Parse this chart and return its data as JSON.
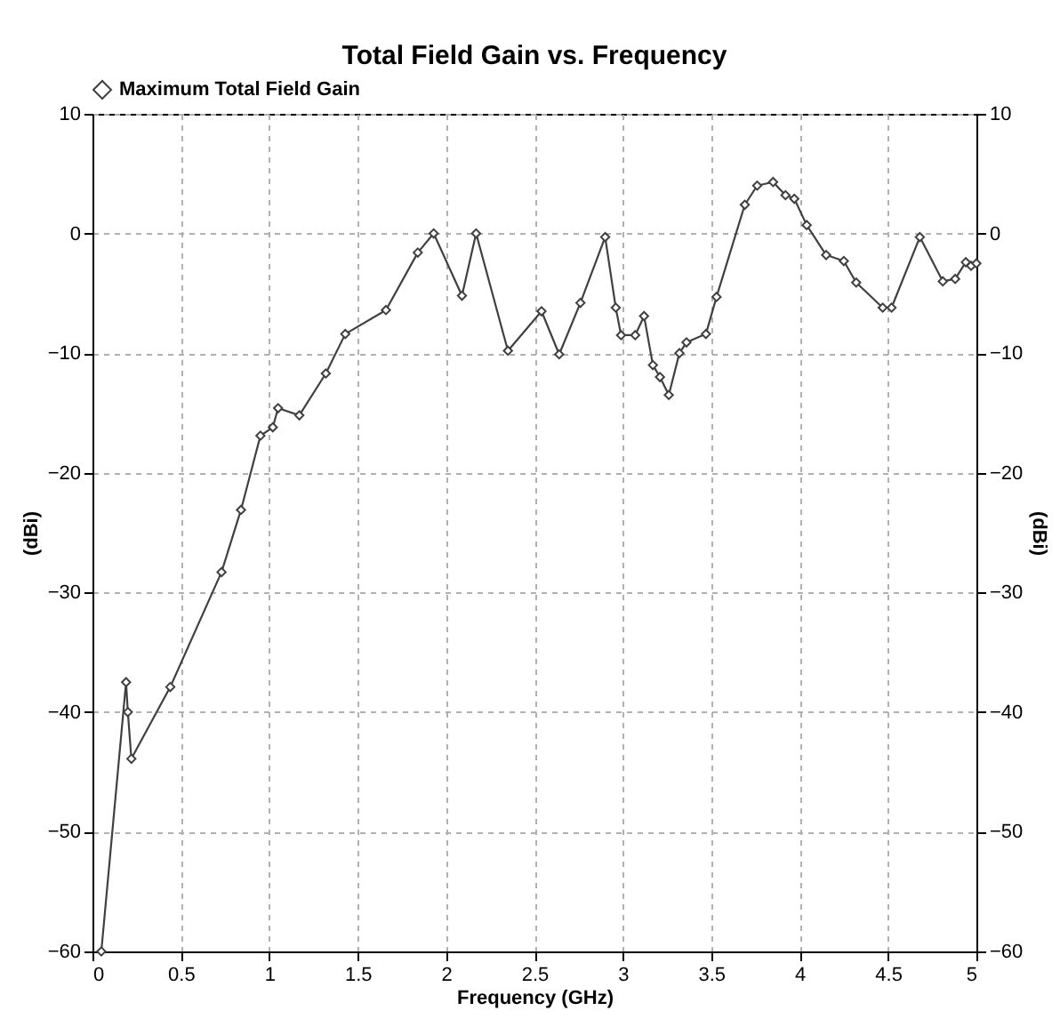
{
  "chart_data": {
    "type": "line",
    "title": "Total Field Gain vs. Frequency",
    "xlabel": "Frequency (GHz)",
    "ylabel": "(dBi)",
    "y2label": "(dBi)",
    "x": [
      0.05,
      0.19,
      0.2,
      0.22,
      0.44,
      0.73,
      0.84,
      0.95,
      1.02,
      1.05,
      1.17,
      1.32,
      1.43,
      1.66,
      1.84,
      1.93,
      2.09,
      2.17,
      2.35,
      2.54,
      2.64,
      2.76,
      2.9,
      2.96,
      2.99,
      3.07,
      3.12,
      3.17,
      3.21,
      3.26,
      3.32,
      3.36,
      3.47,
      3.53,
      3.69,
      3.76,
      3.85,
      3.92,
      3.97,
      4.04,
      4.15,
      4.25,
      4.32,
      4.47,
      4.52,
      4.68,
      4.81,
      4.88,
      4.94,
      4.97,
      5.0
    ],
    "series": [
      {
        "name": "Maximum Total Field Gain",
        "color": "#404040",
        "values": [
          -60,
          -37.5,
          -40,
          -43.9,
          -37.9,
          -28.3,
          -23.1,
          -16.9,
          -16.2,
          -14.6,
          -15.2,
          -11.7,
          -8.4,
          -6.4,
          -1.6,
          0,
          -5.2,
          0,
          -9.8,
          -6.5,
          -10.1,
          -5.8,
          -0.3,
          -6.2,
          -8.5,
          -8.5,
          -6.9,
          -11,
          -12,
          -13.5,
          -10,
          -9.1,
          -8.4,
          -5.3,
          2.4,
          4.0,
          4.3,
          3.2,
          2.9,
          0.7,
          -1.8,
          -2.3,
          -4.1,
          -6.2,
          -6.2,
          -0.3,
          -4.0,
          -3.8,
          -2.4,
          -2.7,
          -2.5
        ]
      }
    ],
    "xlim": [
      0,
      5
    ],
    "xticks": [
      0,
      0.5,
      1,
      1.5,
      2,
      2.5,
      3,
      3.5,
      4,
      4.5,
      5
    ],
    "ylim": [
      -60,
      10
    ],
    "yticks": [
      -60,
      -50,
      -40,
      -30,
      -20,
      -10,
      0,
      10
    ],
    "y2lim": [
      -60,
      10
    ],
    "y2ticks": [
      -60,
      -50,
      -40,
      -30,
      -20,
      -10,
      0,
      10
    ],
    "grid": true,
    "legend": "top left",
    "marker": "diamond",
    "line_style": "solid"
  }
}
